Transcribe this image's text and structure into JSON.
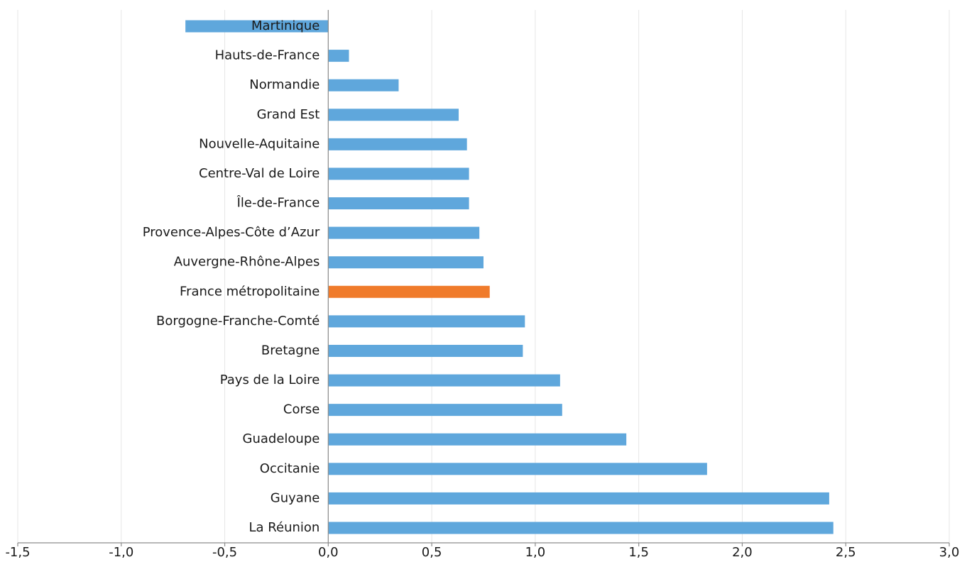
{
  "chart_data": {
    "type": "barh",
    "categories": [
      "Martinique",
      "Hauts-de-France",
      "Normandie",
      "Grand Est",
      "Nouvelle-Aquitaine",
      "Centre-Val de Loire",
      "Île-de-France",
      "Provence-Alpes-Côte d’Azur",
      "Auvergne-Rhône-Alpes",
      "France métropolitaine",
      "Borgogne-Franche-Comté",
      "Bretagne",
      "Pays de la Loire",
      "Corse",
      "Guadeloupe",
      "Occitanie",
      "Guyane",
      "La Réunion"
    ],
    "values": [
      -0.69,
      0.1,
      0.34,
      0.63,
      0.67,
      0.68,
      0.68,
      0.73,
      0.75,
      0.78,
      0.95,
      0.94,
      1.12,
      1.13,
      1.44,
      1.83,
      2.42,
      2.44
    ],
    "colors": [
      "#5fa7dc",
      "#5fa7dc",
      "#5fa7dc",
      "#5fa7dc",
      "#5fa7dc",
      "#5fa7dc",
      "#5fa7dc",
      "#5fa7dc",
      "#5fa7dc",
      "#f07b2b",
      "#5fa7dc",
      "#5fa7dc",
      "#5fa7dc",
      "#5fa7dc",
      "#5fa7dc",
      "#5fa7dc",
      "#5fa7dc",
      "#5fa7dc"
    ],
    "xlim": [
      -1.5,
      3.0
    ],
    "xticks": [
      {
        "value": -1.5,
        "label": "-1,5"
      },
      {
        "value": -1.0,
        "label": "-1,0"
      },
      {
        "value": -0.5,
        "label": "-0,5"
      },
      {
        "value": 0,
        "label": "0,0"
      },
      {
        "value": 0.5,
        "label": "0,5"
      },
      {
        "value": 1.0,
        "label": "1,0"
      },
      {
        "value": 1.5,
        "label": "1,5"
      },
      {
        "value": 2.0,
        "label": "2,0"
      },
      {
        "value": 2.5,
        "label": "2,5"
      },
      {
        "value": 3.0,
        "label": "3,0"
      }
    ],
    "grid": true
  }
}
